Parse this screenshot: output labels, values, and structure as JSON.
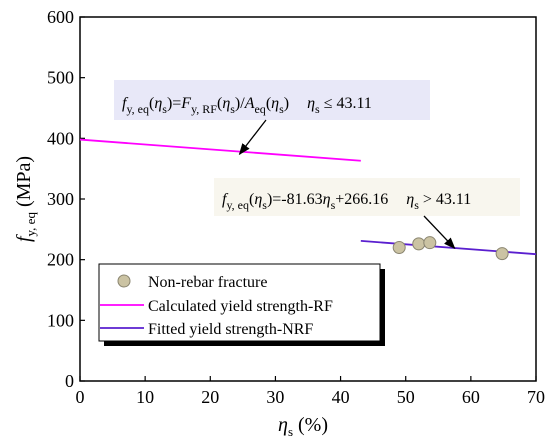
{
  "chart_data": {
    "type": "scatter",
    "xlabel": "ηs (%)",
    "ylabel": "fy, eq (MPa)",
    "xlim": [
      0,
      70
    ],
    "ylim": [
      0,
      600
    ],
    "x_ticks": [
      0,
      10,
      20,
      30,
      40,
      50,
      60,
      70
    ],
    "y_ticks": [
      0,
      100,
      200,
      300,
      400,
      500,
      600
    ],
    "grid": false,
    "legend_position": "bottom-left",
    "series": [
      {
        "name": "Non-rebar fracture",
        "kind": "scatter",
        "color": "#cbc3a3",
        "points": [
          {
            "x": 49.0,
            "y": 220
          },
          {
            "x": 52.0,
            "y": 226
          },
          {
            "x": 53.7,
            "y": 228
          },
          {
            "x": 64.8,
            "y": 210
          }
        ]
      },
      {
        "name": "Calculated yield strength-RF",
        "kind": "line",
        "color": "#ff00ff",
        "points": [
          {
            "x": 0,
            "y": 398
          },
          {
            "x": 43.11,
            "y": 363
          }
        ]
      },
      {
        "name": "Fitted yield strength-NRF",
        "kind": "line",
        "color": "#5a1fcf",
        "points": [
          {
            "x": 43.11,
            "y": 230.97
          },
          {
            "x": 70,
            "y": 209.02
          }
        ]
      }
    ],
    "annotations": [
      {
        "text": "fy, eq(ηs)=Fy, RF(ηs)/Aeq(ηs)    ηs ≤ 43.11",
        "arrow_to": {
          "x": 24.5,
          "y": 374
        },
        "box_color": "#e8e8f8"
      },
      {
        "text": "fy, eq(ηs)=-81.63ηs+266.16    ηs > 43.11",
        "arrow_to": {
          "x": 57.5,
          "y": 219
        },
        "box_color": "#f8f6ee"
      }
    ]
  }
}
